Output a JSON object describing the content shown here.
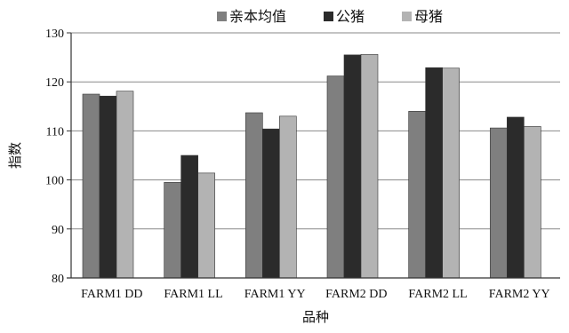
{
  "chart_data": {
    "type": "bar",
    "categories": [
      "FARM1 DD",
      "FARM1 LL",
      "FARM1 YY",
      "FARM2 DD",
      "FARM2 LL",
      "FARM2 YY"
    ],
    "series": [
      {
        "name": "亲本均值",
        "color": "#7f7f7f",
        "values": [
          117.5,
          99.5,
          113.7,
          121.2,
          114.0,
          110.6
        ]
      },
      {
        "name": "公猪",
        "color": "#2b2b2b",
        "values": [
          117.1,
          105.0,
          110.4,
          125.5,
          122.9,
          112.8
        ]
      },
      {
        "name": "母猪",
        "color": "#b3b3b3",
        "values": [
          118.1,
          101.4,
          113.0,
          125.6,
          122.8,
          110.9
        ]
      }
    ],
    "ylim": [
      80,
      130
    ],
    "yticks": [
      80,
      90,
      100,
      110,
      120,
      130
    ],
    "ylabel": "指数",
    "xlabel": "品种",
    "legend": "top-center",
    "grid": true
  }
}
